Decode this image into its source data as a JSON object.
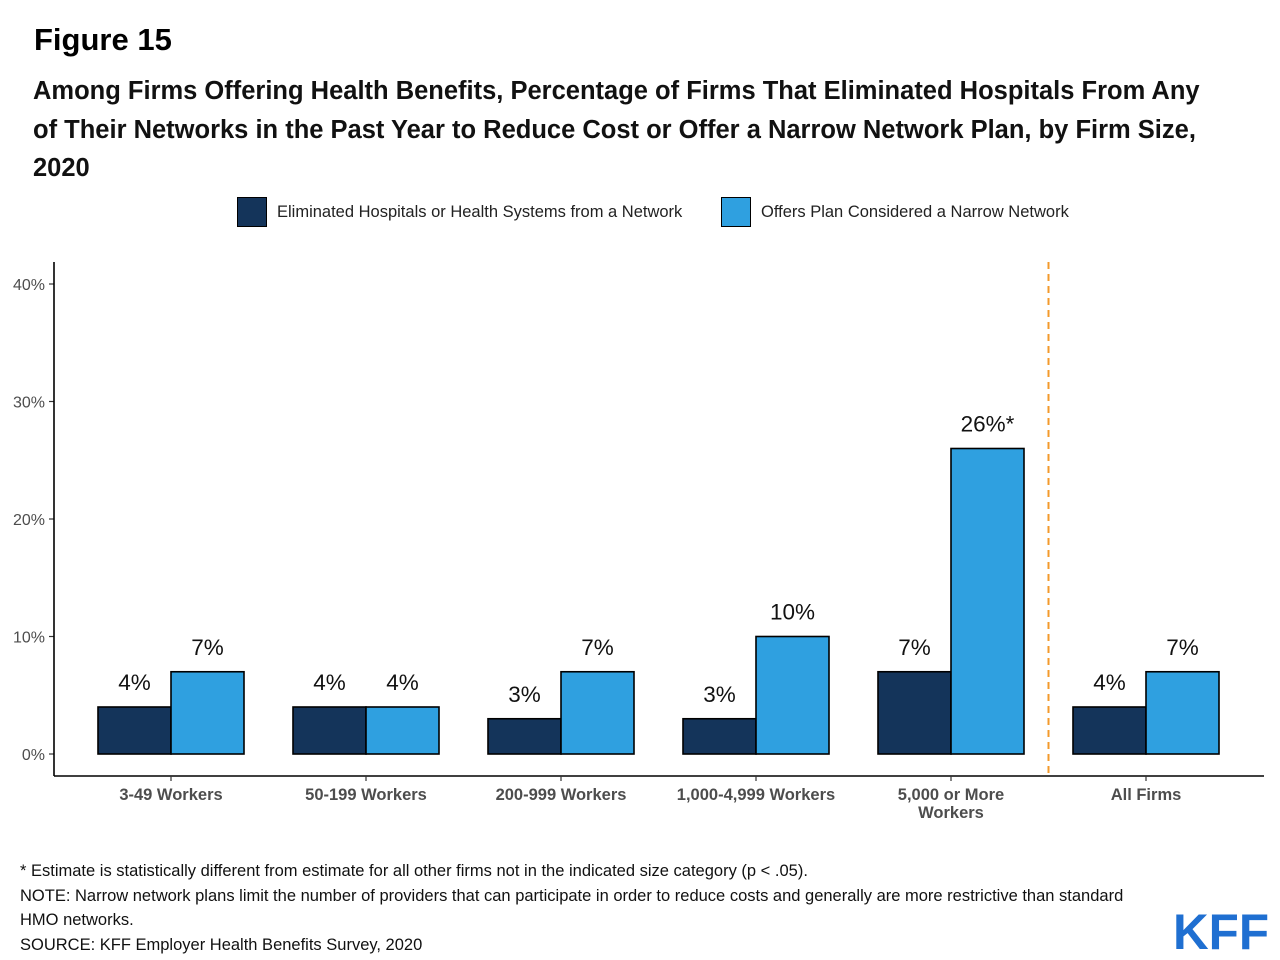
{
  "figure_label": "Figure 15",
  "title": "Among Firms Offering Health Benefits, Percentage of Firms That Eliminated Hospitals From Any of Their Networks in the Past Year to Reduce Cost or Offer a Narrow Network Plan, by Firm Size, 2020",
  "colors": {
    "series1": "#14345a",
    "series2": "#2fa0e0",
    "divider": "#f39a2b",
    "logo": "#1f6fd1"
  },
  "chart_data": {
    "type": "bar",
    "categories": [
      "3-49 Workers",
      "50-199 Workers",
      "200-999 Workers",
      "1,000-4,999 Workers",
      "5,000 or More Workers",
      "All Firms"
    ],
    "series": [
      {
        "name": "Eliminated Hospitals or Health Systems from a Network",
        "values": [
          4,
          4,
          3,
          3,
          7,
          4
        ],
        "labels": [
          "4%",
          "4%",
          "3%",
          "3%",
          "7%",
          "4%"
        ]
      },
      {
        "name": "Offers Plan Considered a Narrow Network",
        "values": [
          7,
          4,
          7,
          10,
          26,
          7
        ],
        "labels": [
          "7%",
          "4%",
          "7%",
          "10%",
          "26%*",
          "7%"
        ]
      }
    ],
    "ylim": [
      0,
      40
    ],
    "yticks": [
      "0%",
      "10%",
      "20%",
      "30%",
      "40%"
    ],
    "ytick_values": [
      0,
      10,
      20,
      30,
      40
    ],
    "xlabel": "",
    "ylabel": "",
    "grid": false,
    "legend_position": "top",
    "divider_before_category": "All Firms"
  },
  "footnotes": [
    "* Estimate is statistically different from estimate for all other firms not in the indicated size category (p < .05).",
    "NOTE: Narrow network plans limit the number of providers that can participate in order to reduce costs and generally are more restrictive than standard HMO networks.",
    "SOURCE: KFF Employer Health Benefits Survey, 2020"
  ],
  "logo_text": "KFF"
}
